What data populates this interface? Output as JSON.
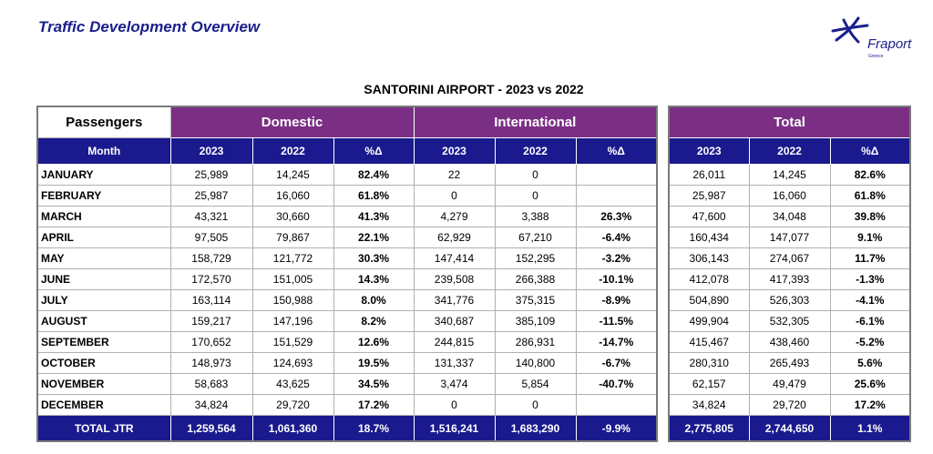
{
  "header": {
    "title": "Traffic Development Overview",
    "logo_text": "Fraport",
    "logo_subtext": "Greece"
  },
  "table_title": "SANTORINI AIRPORT - 2023 vs 2022",
  "passengers_label": "Passengers",
  "groups": {
    "domestic": "Domestic",
    "international": "International",
    "total": "Total"
  },
  "columns": {
    "month": "Month",
    "y2023": "2023",
    "y2022": "2022",
    "pct": "%Δ"
  },
  "rows": [
    {
      "month": "JANUARY",
      "dom23": "25,989",
      "dom22": "14,245",
      "domp": "82.4%",
      "int23": "22",
      "int22": "0",
      "intp": "",
      "tot23": "26,011",
      "tot22": "14,245",
      "totp": "82.6%"
    },
    {
      "month": "FEBRUARY",
      "dom23": "25,987",
      "dom22": "16,060",
      "domp": "61.8%",
      "int23": "0",
      "int22": "0",
      "intp": "",
      "tot23": "25,987",
      "tot22": "16,060",
      "totp": "61.8%"
    },
    {
      "month": "MARCH",
      "dom23": "43,321",
      "dom22": "30,660",
      "domp": "41.3%",
      "int23": "4,279",
      "int22": "3,388",
      "intp": "26.3%",
      "tot23": "47,600",
      "tot22": "34,048",
      "totp": "39.8%"
    },
    {
      "month": "APRIL",
      "dom23": "97,505",
      "dom22": "79,867",
      "domp": "22.1%",
      "int23": "62,929",
      "int22": "67,210",
      "intp": "-6.4%",
      "tot23": "160,434",
      "tot22": "147,077",
      "totp": "9.1%"
    },
    {
      "month": "MAY",
      "dom23": "158,729",
      "dom22": "121,772",
      "domp": "30.3%",
      "int23": "147,414",
      "int22": "152,295",
      "intp": "-3.2%",
      "tot23": "306,143",
      "tot22": "274,067",
      "totp": "11.7%"
    },
    {
      "month": "JUNE",
      "dom23": "172,570",
      "dom22": "151,005",
      "domp": "14.3%",
      "int23": "239,508",
      "int22": "266,388",
      "intp": "-10.1%",
      "tot23": "412,078",
      "tot22": "417,393",
      "totp": "-1.3%"
    },
    {
      "month": "JULY",
      "dom23": "163,114",
      "dom22": "150,988",
      "domp": "8.0%",
      "int23": "341,776",
      "int22": "375,315",
      "intp": "-8.9%",
      "tot23": "504,890",
      "tot22": "526,303",
      "totp": "-4.1%"
    },
    {
      "month": "AUGUST",
      "dom23": "159,217",
      "dom22": "147,196",
      "domp": "8.2%",
      "int23": "340,687",
      "int22": "385,109",
      "intp": "-11.5%",
      "tot23": "499,904",
      "tot22": "532,305",
      "totp": "-6.1%"
    },
    {
      "month": "SEPTEMBER",
      "dom23": "170,652",
      "dom22": "151,529",
      "domp": "12.6%",
      "int23": "244,815",
      "int22": "286,931",
      "intp": "-14.7%",
      "tot23": "415,467",
      "tot22": "438,460",
      "totp": "-5.2%"
    },
    {
      "month": "OCTOBER",
      "dom23": "148,973",
      "dom22": "124,693",
      "domp": "19.5%",
      "int23": "131,337",
      "int22": "140,800",
      "intp": "-6.7%",
      "tot23": "280,310",
      "tot22": "265,493",
      "totp": "5.6%"
    },
    {
      "month": "NOVEMBER",
      "dom23": "58,683",
      "dom22": "43,625",
      "domp": "34.5%",
      "int23": "3,474",
      "int22": "5,854",
      "intp": "-40.7%",
      "tot23": "62,157",
      "tot22": "49,479",
      "totp": "25.6%"
    },
    {
      "month": "DECEMBER",
      "dom23": "34,824",
      "dom22": "29,720",
      "domp": "17.2%",
      "int23": "0",
      "int22": "0",
      "intp": "",
      "tot23": "34,824",
      "tot22": "29,720",
      "totp": "17.2%"
    }
  ],
  "total_row": {
    "label": "TOTAL JTR",
    "dom23": "1,259,564",
    "dom22": "1,061,360",
    "domp": "18.7%",
    "int23": "1,516,241",
    "int22": "1,683,290",
    "intp": "-9.9%",
    "tot23": "2,775,805",
    "tot22": "2,744,650",
    "totp": "1.1%"
  },
  "colors": {
    "title_blue": "#1a1f8c",
    "header_purple": "#7b2f84",
    "header_navy": "#1a1a8e"
  }
}
